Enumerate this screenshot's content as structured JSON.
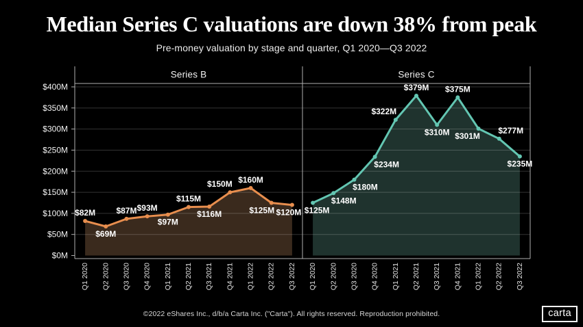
{
  "header": {
    "title": "Median Series C valuations are down 38% from peak",
    "subtitle": "Pre-money valuation by stage and quarter, Q1 2020—Q3 2022"
  },
  "chart_data": {
    "type": "area",
    "categories": [
      "Q1 2020",
      "Q2 2020",
      "Q3 2020",
      "Q4 2020",
      "Q1 2021",
      "Q2 2021",
      "Q3 2021",
      "Q4 2021",
      "Q1 2022",
      "Q2 2022",
      "Q3 2022"
    ],
    "y_axis": {
      "min": 0,
      "max": 400,
      "step": 50,
      "tick_labels": [
        "$0M",
        "$50M",
        "$100M",
        "$150M",
        "$200M",
        "$250M",
        "$300M",
        "$350M",
        "$400M"
      ]
    },
    "grid": true,
    "legend_position": "none",
    "panels": [
      {
        "title": "Series B",
        "line_color": "#E88E4E",
        "fill_color": "#3A2A1D",
        "values": [
          82,
          69,
          87,
          93,
          97,
          115,
          116,
          150,
          160,
          125,
          120
        ],
        "labels": [
          "$82M",
          "$69M",
          "$87M",
          "$93M",
          "$97M",
          "$115M",
          "$116M",
          "$150M",
          "$160M",
          "$125M",
          "$120M"
        ],
        "label_pos": [
          "above",
          "below",
          "above",
          "above",
          "below",
          "above",
          "below",
          "above",
          "above",
          "below",
          "below"
        ],
        "label_dx": [
          0,
          0,
          0,
          0,
          0,
          0,
          0,
          -15,
          0,
          -14,
          -5
        ]
      },
      {
        "title": "Series C",
        "line_color": "#63C6B2",
        "fill_color": "#1F332E",
        "values": [
          125,
          148,
          180,
          234,
          322,
          379,
          310,
          375,
          301,
          277,
          235
        ],
        "labels": [
          "$125M",
          "$148M",
          "$180M",
          "$234M",
          "$322M",
          "$379M",
          "$310M",
          "$375M",
          "$301M",
          "$277M",
          "$235M"
        ],
        "label_pos": [
          "below",
          "below",
          "below",
          "below",
          "above",
          "above",
          "below",
          "above",
          "below",
          "above",
          "below"
        ],
        "label_dx": [
          6,
          15,
          16,
          17,
          -17,
          0,
          0,
          0,
          -16,
          17,
          0
        ]
      }
    ]
  },
  "footer": {
    "copyright": "©2022 eShares Inc., d/b/a Carta Inc. (\"Carta\"). All rights reserved. Reproduction prohibited.",
    "logo_text": "carta"
  },
  "colors": {
    "background": "#000000",
    "text": "#FFFFFF",
    "grid": "rgba(255,255,255,0.2)",
    "axis": "#B0B0B0",
    "series_b_line": "#E88E4E",
    "series_b_fill": "#3A2A1D",
    "series_c_line": "#63C6B2",
    "series_c_fill": "#1F332E"
  }
}
